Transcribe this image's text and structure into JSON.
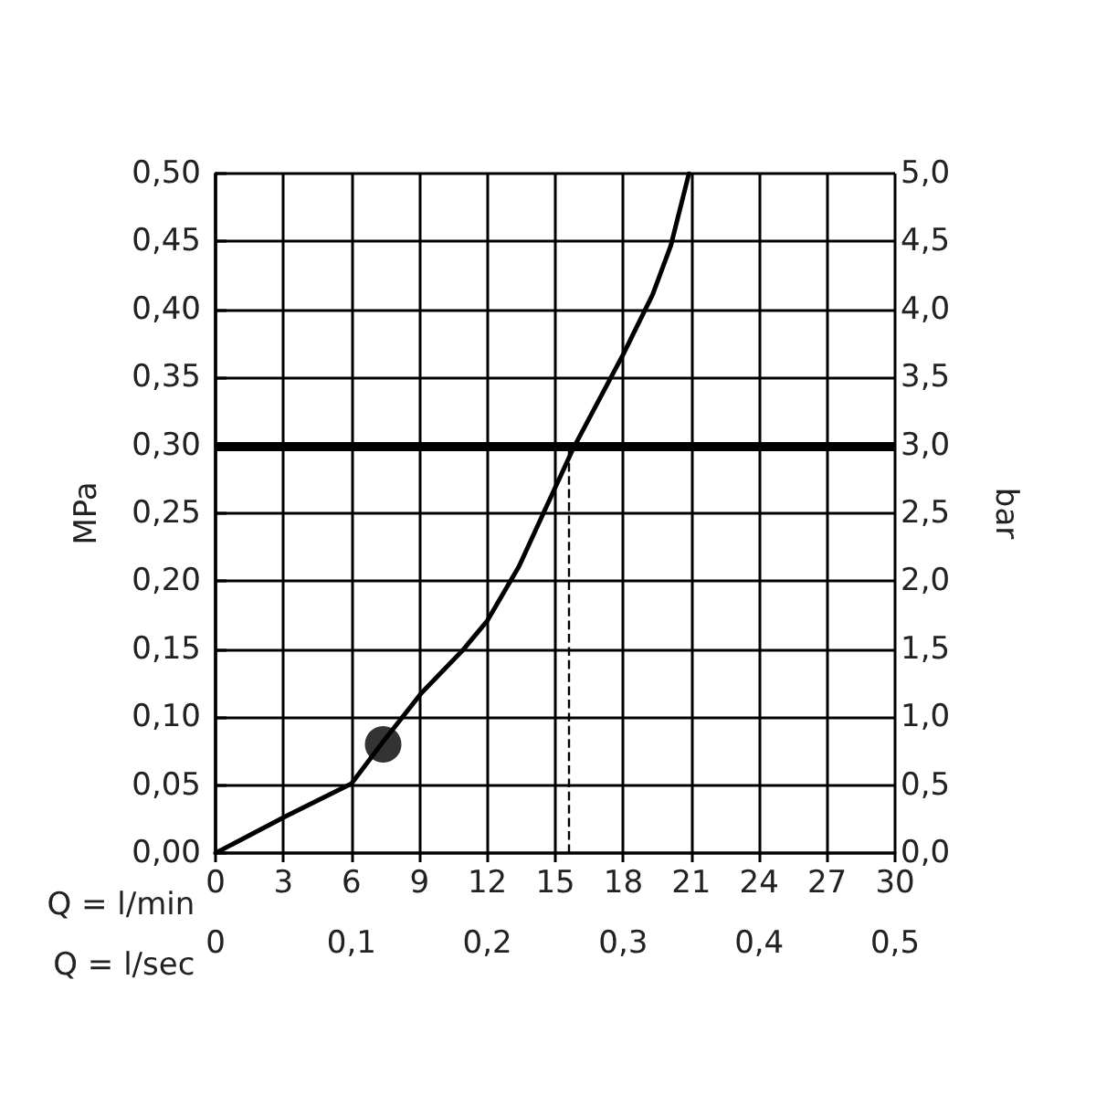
{
  "chart_data": {
    "type": "line",
    "xlabel": "Q = l/min",
    "x2label": "Q = l/sec",
    "ylabel": "MPa",
    "y2label": "bar",
    "xlim": [
      0,
      30
    ],
    "xticks": [
      0,
      3,
      6,
      9,
      12,
      15,
      18,
      21,
      24,
      27,
      30
    ],
    "x2lim": [
      0,
      0.5
    ],
    "x2ticks": [
      0,
      {
        "value": 0.1,
        "label": "0,1"
      },
      {
        "value": 0.2,
        "label": "0,2"
      },
      {
        "value": 0.3,
        "label": "0,3"
      },
      {
        "value": 0.4,
        "label": "0,4"
      },
      {
        "value": 0.5,
        "label": "0,5"
      }
    ],
    "ylim": [
      0,
      0.5
    ],
    "yticks": [
      {
        "value": 0,
        "label": "0,00"
      },
      {
        "value": 0.05,
        "label": "0,05"
      },
      {
        "value": 0.1,
        "label": "0,10"
      },
      {
        "value": 0.15,
        "label": "0,15"
      },
      {
        "value": 0.2,
        "label": "0,20"
      },
      {
        "value": 0.25,
        "label": "0,25"
      },
      {
        "value": 0.3,
        "label": "0,30"
      },
      {
        "value": 0.35,
        "label": "0,35"
      },
      {
        "value": 0.4,
        "label": "0,40"
      },
      {
        "value": 0.45,
        "label": "0,45"
      },
      {
        "value": 0.5,
        "label": "0,50"
      }
    ],
    "y2lim": [
      0,
      5
    ],
    "y2ticks": [
      {
        "value": 0,
        "label": "0,0"
      },
      {
        "value": 0.5,
        "label": "0,5"
      },
      {
        "value": 1,
        "label": "1,0"
      },
      {
        "value": 1.5,
        "label": "1,5"
      },
      {
        "value": 2,
        "label": "2,0"
      },
      {
        "value": 2.5,
        "label": "2,5"
      },
      {
        "value": 3,
        "label": "3,0"
      },
      {
        "value": 3.5,
        "label": "3,5"
      },
      {
        "value": 4,
        "label": "4,0"
      },
      {
        "value": 4.5,
        "label": "4,5"
      },
      {
        "value": 5,
        "label": "5,0"
      }
    ],
    "series": [
      {
        "type": "line",
        "color": "#000000",
        "marker": "none",
        "line_style": "solid",
        "x": [
          0,
          3.1,
          6,
          7.4,
          9.1,
          10.9,
          12,
          13.4,
          14.5,
          15.8,
          18,
          19.3,
          20.1,
          20.9
        ],
        "values": [
          0,
          0.027,
          0.051,
          0.082,
          0.118,
          0.149,
          0.171,
          0.211,
          0.251,
          0.298,
          0.367,
          0.411,
          0.447,
          0.5
        ]
      },
      {
        "type": "scatter",
        "color": "#000000",
        "marker": "circle",
        "x": [
          7.4
        ],
        "values": [
          0.08
        ]
      }
    ],
    "ref_lines": [
      {
        "axis": "y",
        "value": 0.3,
        "color": "#000000",
        "line_style": "solid"
      },
      {
        "axis": "x",
        "value": 15.6,
        "color": "#000000",
        "line_style": "dashed"
      }
    ],
    "grid": true
  }
}
